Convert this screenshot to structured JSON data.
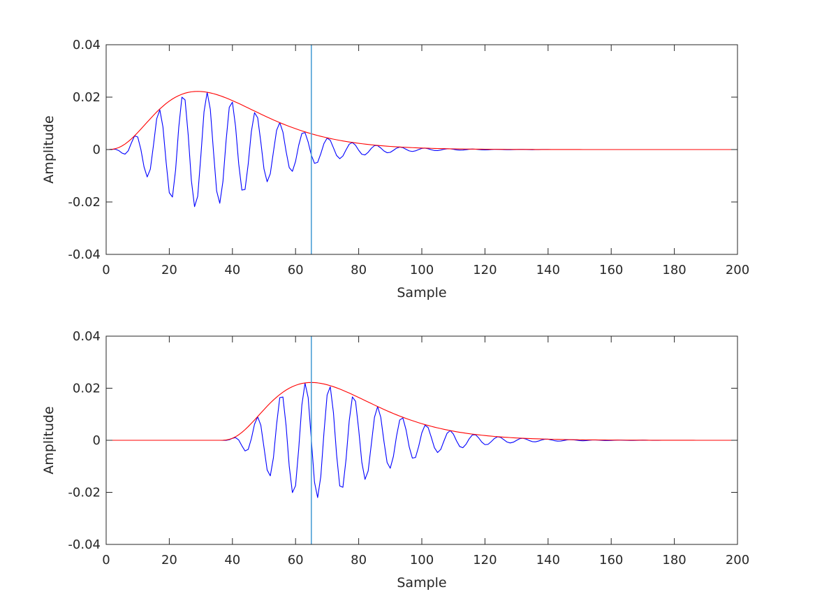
{
  "chart_data": [
    {
      "type": "line",
      "title": "",
      "xlabel": "Sample",
      "ylabel": "Amplitude",
      "xlim": [
        0,
        200
      ],
      "ylim": [
        -0.04,
        0.04
      ],
      "xticks": [
        "0",
        "20",
        "40",
        "60",
        "80",
        "100",
        "120",
        "140",
        "160",
        "180",
        "200"
      ],
      "yticks": [
        "-0.04",
        "-0.02",
        "0",
        "0.02",
        "0.04"
      ],
      "x_start": 0,
      "x_step": 1,
      "grid": false,
      "cursor": {
        "x": 65,
        "color": "#4d9fd6"
      },
      "series": [
        {
          "color": "#0000ff",
          "values": [
            0,
            2e-05,
            0.00011,
            0.00011,
            -0.00039,
            -0.00133,
            -0.00175,
            -0.00047,
            0.00254,
            0.00523,
            0.0048,
            7e-05,
            -0.00662,
            -0.01045,
            -0.00748,
            0.00175,
            0.0117,
            0.01516,
            0.00856,
            -0.00482,
            -0.01647,
            -0.01812,
            -0.00778,
            0.00845,
            0.01998,
            0.01894,
            0.0055,
            -0.01181,
            -0.02178,
            -0.01785,
            -0.00246,
            0.01438,
            0.02185,
            0.01535,
            -0.00066,
            -0.0158,
            -0.02049,
            -0.01213,
            0.00345,
            0.01612,
            0.01809,
            0.00874,
            -0.00552,
            -0.01547,
            -0.01521,
            -0.00555,
            0.00685,
            0.01409,
            0.01214,
            0.00288,
            -0.00741,
            -0.01228,
            -0.00922,
            -0.00079,
            0.00736,
            0.01028,
            0.00666,
            -0.00068,
            -0.0069,
            -0.00831,
            -0.00452,
            0.00162,
            0.00615,
            0.00647,
            0.00284,
            -0.00212,
            -0.00526,
            -0.00487,
            -0.00158,
            0.0023,
            0.00436,
            0.00354,
            0.00069,
            -0.00225,
            -0.00348,
            -0.00247,
            -9e-05,
            0.00205,
            0.00271,
            0.00165,
            -0.00027,
            -0.0018,
            -0.00205,
            -0.00104,
            0.00046,
            0.0015,
            0.0015,
            0.0006,
            -0.00054,
            -0.00121,
            -0.00107,
            -0.0003,
            0.00054,
            0.00095,
            0.00073,
            0.00011,
            -0.0005,
            -0.00073,
            -0.00049,
            1e-05,
            0.00044,
            0.00055,
            0.00032,
            -7e-05,
            -0.00036,
            -0.00039,
            -0.00019,
            0.0001,
            0.00029,
            0.00027,
            0.0001,
            -0.00011,
            -0.00022,
            -0.00018,
            -5e-05,
            0.0001,
            0.00017,
            0.00013,
            1e-05,
            -9e-05,
            -0.00013,
            -8e-05,
            0,
            8e-05,
            9e-05,
            5e-05,
            -2e-05,
            -6e-05,
            -6e-05,
            -3e-05,
            2e-05,
            5e-05,
            4e-05,
            1e-05,
            -2e-05,
            -4e-05,
            -3e-05,
            -1e-05,
            2e-05,
            3e-05,
            2e-05,
            0,
            0,
            0,
            0,
            0,
            0,
            0,
            0,
            0,
            0,
            0,
            0,
            0,
            0,
            0,
            0,
            0,
            0,
            0,
            0,
            0,
            0,
            0,
            0,
            0,
            0,
            0,
            0,
            0,
            0,
            0,
            0,
            0,
            0,
            0,
            0,
            0,
            0,
            0,
            0,
            0,
            0,
            0,
            0,
            0,
            0,
            0,
            0,
            0,
            0,
            0,
            0,
            0,
            0,
            0,
            0,
            0,
            0,
            0,
            0
          ]
        },
        {
          "color": "#ff0000",
          "values": [
            0,
            2e-05,
            0.00012,
            0.00036,
            0.00077,
            0.00136,
            0.00212,
            0.00304,
            0.00409,
            0.00525,
            0.0065,
            0.00779,
            0.00913,
            0.01047,
            0.01178,
            0.01308,
            0.01432,
            0.01549,
            0.01655,
            0.01758,
            0.01848,
            0.0193,
            0.01999,
            0.02061,
            0.0211,
            0.02152,
            0.02182,
            0.02203,
            0.02216,
            0.0222,
            0.02216,
            0.02205,
            0.02187,
            0.02162,
            0.02133,
            0.02098,
            0.02059,
            0.02015,
            0.0197,
            0.01919,
            0.01867,
            0.01814,
            0.01759,
            0.01702,
            0.01644,
            0.01586,
            0.01528,
            0.01469,
            0.01412,
            0.01354,
            0.01297,
            0.0124,
            0.01185,
            0.01131,
            0.01079,
            0.01028,
            0.00978,
            0.0093,
            0.00884,
            0.00839,
            0.00796,
            0.00754,
            0.00714,
            0.00675,
            0.00638,
            0.00603,
            0.00569,
            0.00536,
            0.00505,
            0.00476,
            0.00449,
            0.00422,
            0.00397,
            0.00373,
            0.0035,
            0.00328,
            0.00308,
            0.00289,
            0.00271,
            0.00254,
            0.00238,
            0.00223,
            0.00209,
            0.00195,
            0.00182,
            0.0017,
            0.00159,
            0.00148,
            0.00138,
            0.00129,
            0.0012,
            0.00112,
            0.00104,
            0.00097,
            0.0009,
            0.00084,
            0.00078,
            0.00073,
            0.00068,
            0.00063,
            0.00059,
            0.00055,
            0.00051,
            0.00047,
            0.00043,
            0.0004,
            0.00037,
            0.00034,
            0.00032,
            0.00029,
            0.00027,
            0.00025,
            0.00023,
            0.00021,
            0.0002,
            0.00018,
            0.00017,
            0.00016,
            0.00015,
            0.00014,
            0.00013,
            0.00012,
            0.00011,
            0.0001,
            9e-05,
            8e-05,
            8e-05,
            7e-05,
            7e-05,
            6e-05,
            6e-05,
            5e-05,
            5e-05,
            4e-05,
            4e-05,
            4e-05,
            3e-05,
            3e-05,
            3e-05,
            3e-05,
            2e-05,
            2e-05,
            2e-05,
            2e-05,
            2e-05,
            2e-05,
            2e-05,
            2e-05,
            2e-05,
            2e-05,
            2e-05,
            0,
            0,
            0,
            0,
            0,
            0,
            0,
            0,
            0,
            0,
            0,
            0,
            0,
            0,
            0,
            0,
            0,
            0,
            0,
            0,
            0,
            0,
            0,
            0,
            0,
            0,
            0,
            0,
            0,
            0,
            0,
            0,
            0,
            0,
            0,
            0,
            0,
            0,
            0,
            0,
            0,
            0,
            0,
            0,
            0,
            0,
            0,
            0,
            0,
            0
          ]
        }
      ]
    },
    {
      "type": "line",
      "title": "",
      "xlabel": "Sample",
      "ylabel": "Amplitude",
      "xlim": [
        0,
        200
      ],
      "ylim": [
        -0.04,
        0.04
      ],
      "xticks": [
        "0",
        "20",
        "40",
        "60",
        "80",
        "100",
        "120",
        "140",
        "160",
        "180",
        "200"
      ],
      "yticks": [
        "-0.04",
        "-0.02",
        "0",
        "0.02",
        "0.04"
      ],
      "x_start": 0,
      "x_step": 1,
      "grid": false,
      "cursor": {
        "x": 65,
        "color": "#4d9fd6"
      },
      "series": [
        {
          "color": "#0000ff",
          "values": [
            0,
            0,
            0,
            0,
            0,
            0,
            0,
            0,
            0,
            0,
            0,
            0,
            0,
            0,
            0,
            0,
            0,
            0,
            0,
            0,
            0,
            0,
            0,
            0,
            0,
            0,
            0,
            0,
            0,
            0,
            0,
            0,
            0,
            0,
            0,
            0,
            0,
            -2e-05,
            -2e-05,
            0.00021,
            0.00076,
            0.00104,
            0.00011,
            -0.00212,
            -0.00409,
            -0.0035,
            0.0006,
            0.00617,
            0.00901,
            0.00578,
            -0.00274,
            -0.01139,
            -0.01365,
            -0.00661,
            0.00614,
            0.01638,
            0.01663,
            0.00564,
            -0.01,
            -0.02009,
            -0.01747,
            -0.00329,
            0.01353,
            0.02196,
            0.01638,
            0.00022,
            -0.01607,
            -0.02201,
            -0.01389,
            0.0029,
            0.01741,
            0.02054,
            0.01065,
            -0.00552,
            -0.01755,
            -0.01804,
            -0.00726,
            0.00742,
            0.01666,
            0.01498,
            0.00418,
            -0.0085,
            -0.01502,
            -0.01181,
            -0.00157,
            0.00881,
            0.01296,
            0.00882,
            -0.00037,
            -0.00852,
            -0.01074,
            -0.00619,
            0.0017,
            0.00781,
            0.00857,
            0.00404,
            -0.0025,
            -0.00685,
            -0.0066,
            -0.00238,
            0.00285,
            0.00578,
            0.0049,
            0.00115,
            -0.00287,
            -0.00471,
            -0.0035,
            -0.0003,
            0.0027,
            0.00373,
            0.00238,
            -0.00024,
            -0.0024,
            -0.00286,
            -0.00154,
            0.00055,
            0.00205,
            0.00214,
            0.00093,
            -0.00069,
            -0.00168,
            -0.00155,
            -0.0005,
            0.00071,
            0.00134,
            0.00108,
            0.00021,
            -0.00068,
            -0.00103,
            -0.00073,
            -3e-05,
            0.0006,
            0.00078,
            0.00048,
            -8e-05,
            -0.00051,
            -0.00058,
            -0.00029,
            0.00013,
            0.00041,
            0.00041,
            0.00016,
            -0.00014,
            -0.00032,
            -0.00029,
            -8e-05,
            0.00014,
            0.00024,
            0.00019,
            3e-05,
            -0.00013,
            -0.00018,
            -0.00012,
            0,
            0.00011,
            0.00013,
            8e-05,
            -2e-05,
            -9e-05,
            -0.0001,
            -5e-05,
            2e-05,
            7e-05,
            7e-05,
            2e-05,
            -3e-05,
            -5e-05,
            -4e-05,
            -1e-05,
            2e-05,
            4e-05,
            3e-05,
            0,
            -2e-05,
            -3e-05,
            -2e-05,
            0,
            0,
            0,
            0,
            0,
            0,
            0,
            0,
            0,
            0,
            0,
            0,
            0,
            0,
            0,
            0,
            0,
            0,
            0,
            0,
            0,
            0,
            0,
            0,
            0
          ]
        },
        {
          "color": "#ff0000",
          "values": [
            0,
            0,
            0,
            0,
            0,
            0,
            0,
            0,
            0,
            0,
            0,
            0,
            0,
            0,
            0,
            0,
            0,
            0,
            0,
            0,
            0,
            0,
            0,
            0,
            0,
            0,
            0,
            0,
            0,
            0,
            0,
            0,
            0,
            0,
            0,
            0,
            0,
            2e-05,
            0.00012,
            0.00036,
            0.00077,
            0.00136,
            0.00212,
            0.00304,
            0.00409,
            0.00525,
            0.0065,
            0.00779,
            0.00913,
            0.01047,
            0.01178,
            0.01308,
            0.01432,
            0.01549,
            0.01655,
            0.01758,
            0.01848,
            0.0193,
            0.01999,
            0.02061,
            0.0211,
            0.02152,
            0.02182,
            0.02203,
            0.02216,
            0.0222,
            0.02216,
            0.02205,
            0.02187,
            0.02162,
            0.02133,
            0.02098,
            0.02059,
            0.02015,
            0.0197,
            0.01919,
            0.01867,
            0.01814,
            0.01759,
            0.01702,
            0.01644,
            0.01586,
            0.01528,
            0.01469,
            0.01412,
            0.01354,
            0.01297,
            0.0124,
            0.01185,
            0.01131,
            0.01079,
            0.01028,
            0.00978,
            0.0093,
            0.00884,
            0.00839,
            0.00796,
            0.00754,
            0.00714,
            0.00675,
            0.00638,
            0.00603,
            0.00569,
            0.00536,
            0.00505,
            0.00476,
            0.00449,
            0.00422,
            0.00397,
            0.00373,
            0.0035,
            0.00328,
            0.00308,
            0.00289,
            0.00271,
            0.00254,
            0.00238,
            0.00223,
            0.00209,
            0.00195,
            0.00182,
            0.0017,
            0.00159,
            0.00148,
            0.00138,
            0.00129,
            0.0012,
            0.00112,
            0.00104,
            0.00097,
            0.0009,
            0.00084,
            0.00078,
            0.00073,
            0.00068,
            0.00063,
            0.00059,
            0.00055,
            0.00051,
            0.00047,
            0.00043,
            0.0004,
            0.00037,
            0.00034,
            0.00032,
            0.00029,
            0.00027,
            0.00025,
            0.00023,
            0.00021,
            0.0002,
            0.00018,
            0.00017,
            0.00016,
            0.00015,
            0.00014,
            0.00013,
            0.00012,
            0.00011,
            0.0001,
            9e-05,
            8e-05,
            8e-05,
            7e-05,
            7e-05,
            6e-05,
            6e-05,
            5e-05,
            5e-05,
            4e-05,
            4e-05,
            4e-05,
            3e-05,
            3e-05,
            3e-05,
            3e-05,
            2e-05,
            2e-05,
            2e-05,
            2e-05,
            2e-05,
            2e-05,
            2e-05,
            2e-05,
            2e-05,
            2e-05,
            2e-05,
            0,
            0,
            0,
            0,
            0,
            0,
            0,
            0,
            0,
            0,
            0,
            0,
            0,
            0
          ]
        }
      ]
    }
  ]
}
